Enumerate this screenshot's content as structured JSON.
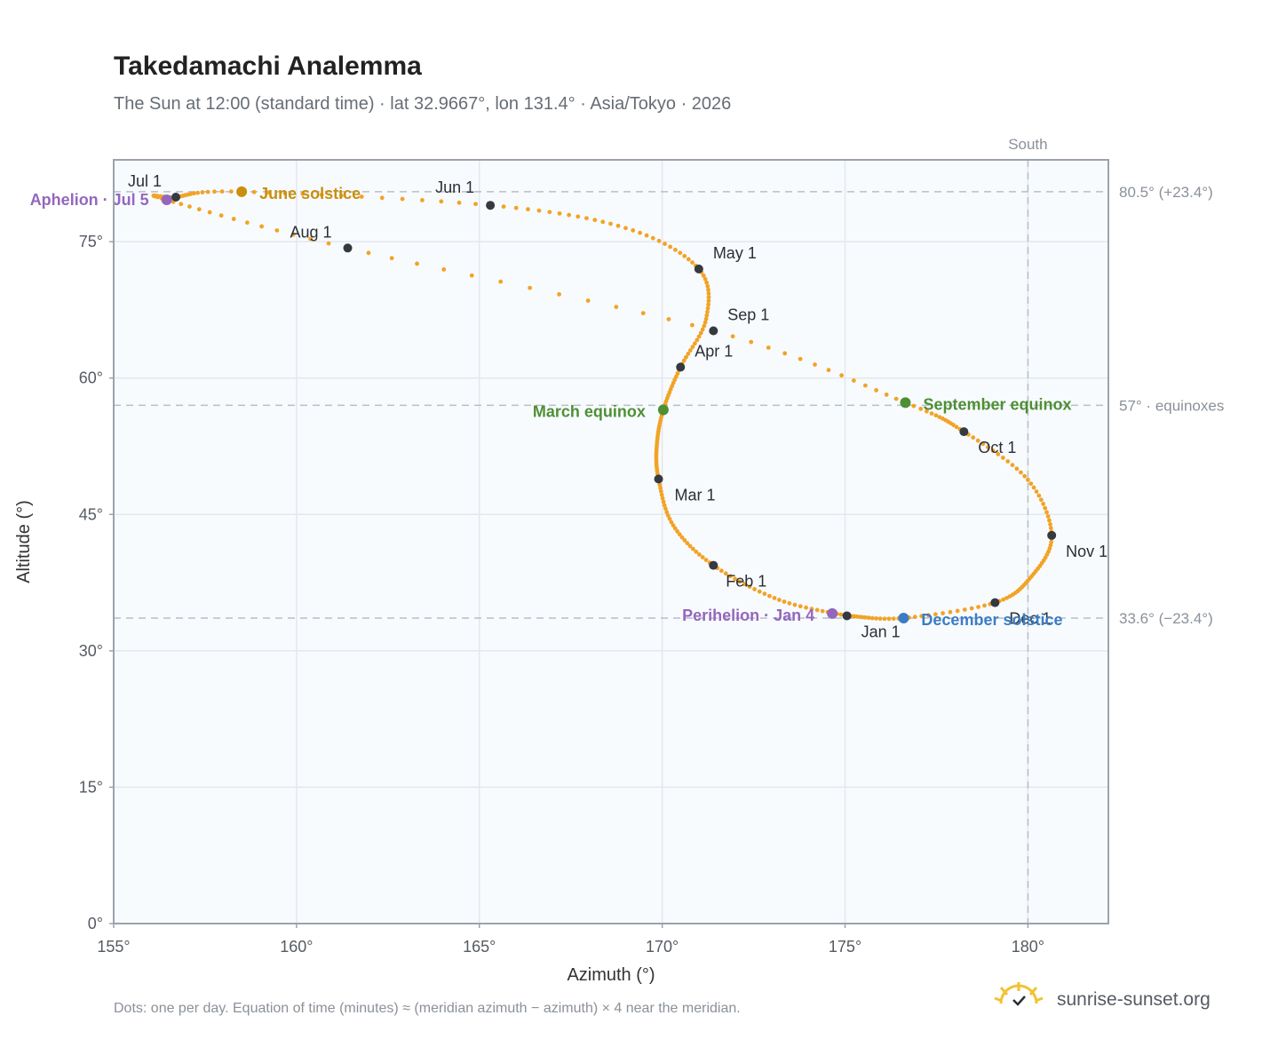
{
  "colors": {
    "curve": "#f2a326",
    "month_dot": "#343a40",
    "aphelion": "#9467bd",
    "perihelion": "#9467bd",
    "june_solstice": "#c8900e",
    "equinox": "#4e8f34",
    "december_solstice": "#3b7dc4",
    "plot_bg": "#f8fbfe",
    "grid": "#e3e8ee",
    "frame": "#9aa3ad",
    "refline": "#b7bec6",
    "brand_sun": "#f2c230"
  },
  "brand": {
    "icon": "sunrise-icon",
    "text": "sunrise-sunset.org"
  },
  "footnote": "Dots: one per day. Equation of time (minutes) ≈ (meridian azimuth − azimuth) × 4 near the meridian.",
  "chart_data": {
    "type": "scatter",
    "title": "Takedamachi Analemma",
    "subtitle": "The Sun at 12:00 (standard time) · lat 32.9667°, lon 131.4° · Asia/Tokyo · 2026",
    "xlabel": "Azimuth (°)",
    "ylabel": "Altitude (°)",
    "xlim": [
      155,
      182.2
    ],
    "ylim": [
      0,
      84
    ],
    "xticks": [
      155,
      160,
      165,
      170,
      175,
      180
    ],
    "xtick_labels": [
      "155°",
      "160°",
      "165°",
      "170°",
      "175°",
      "180°"
    ],
    "yticks": [
      0,
      15,
      30,
      45,
      60,
      75
    ],
    "ytick_labels": [
      "0°",
      "15°",
      "30°",
      "45°",
      "60°",
      "75°"
    ],
    "grid": true,
    "reference_lines": {
      "vertical": [
        {
          "x": 180,
          "label": "South"
        }
      ],
      "horizontal": [
        {
          "y": 80.5,
          "label": "80.5° (+23.4°)"
        },
        {
          "y": 57,
          "label": "57° · equinoxes"
        },
        {
          "y": 33.6,
          "label": "33.6° (−23.4°)"
        }
      ]
    },
    "path_description_points": [
      {
        "date": "Jan 1",
        "az": 175.05,
        "alt": 33.85
      },
      {
        "date": "Jan 15",
        "az": 173.2,
        "alt": 35.6
      },
      {
        "date": "Feb 1",
        "az": 171.4,
        "alt": 39.4
      },
      {
        "date": "Feb 15",
        "az": 170.3,
        "alt": 43.8
      },
      {
        "date": "Mar 1",
        "az": 169.9,
        "alt": 48.9
      },
      {
        "date": "Mar 10",
        "az": 169.85,
        "alt": 52.5
      },
      {
        "date": "Mar 20",
        "az": 170.03,
        "alt": 56.5
      },
      {
        "date": "Apr 1",
        "az": 170.5,
        "alt": 61.2
      },
      {
        "date": "Apr 15",
        "az": 171.2,
        "alt": 66.5
      },
      {
        "date": "May 1",
        "az": 171.0,
        "alt": 72.0
      },
      {
        "date": "May 15",
        "az": 169.0,
        "alt": 76.5
      },
      {
        "date": "Jun 1",
        "az": 165.3,
        "alt": 79.0
      },
      {
        "date": "Jun 21",
        "az": 158.5,
        "alt": 80.5
      },
      {
        "date": "Jul 1",
        "az": 156.7,
        "alt": 79.9
      },
      {
        "date": "Jul 5",
        "az": 156.45,
        "alt": 79.6
      },
      {
        "date": "Aug 1",
        "az": 161.4,
        "alt": 74.3
      },
      {
        "date": "Sep 1",
        "az": 171.4,
        "alt": 65.2
      },
      {
        "date": "Sep 23",
        "az": 176.65,
        "alt": 57.3
      },
      {
        "date": "Oct 1",
        "az": 178.25,
        "alt": 54.1
      },
      {
        "date": "Oct 15",
        "az": 180.0,
        "alt": 48.8
      },
      {
        "date": "Nov 1",
        "az": 180.65,
        "alt": 42.7
      },
      {
        "date": "Nov 15",
        "az": 180.1,
        "alt": 38.2
      },
      {
        "date": "Dec 1",
        "az": 179.1,
        "alt": 35.3
      },
      {
        "date": "Dec 21",
        "az": 176.6,
        "alt": 33.6
      },
      {
        "date": "Dec 31",
        "az": 175.2,
        "alt": 33.8
      }
    ],
    "month_markers": [
      {
        "label": "Jan 1",
        "az": 175.05,
        "alt": 33.85
      },
      {
        "label": "Feb 1",
        "az": 171.4,
        "alt": 39.4
      },
      {
        "label": "Mar 1",
        "az": 169.9,
        "alt": 48.9
      },
      {
        "label": "Apr 1",
        "az": 170.5,
        "alt": 61.2
      },
      {
        "label": "May 1",
        "az": 171.0,
        "alt": 72.0
      },
      {
        "label": "Jun 1",
        "az": 165.3,
        "alt": 79.0
      },
      {
        "label": "Jul 1",
        "az": 156.7,
        "alt": 79.9
      },
      {
        "label": "Aug 1",
        "az": 161.4,
        "alt": 74.3
      },
      {
        "label": "Sep 1",
        "az": 171.4,
        "alt": 65.2
      },
      {
        "label": "Oct 1",
        "az": 178.25,
        "alt": 54.1
      },
      {
        "label": "Nov 1",
        "az": 180.65,
        "alt": 42.7
      },
      {
        "label": "Dec 1",
        "az": 179.1,
        "alt": 35.3
      }
    ],
    "events": [
      {
        "label": "Aphelion · Jul 5",
        "az": 156.45,
        "alt": 79.6,
        "kind": "aphelion"
      },
      {
        "label": "June solstice",
        "az": 158.5,
        "alt": 80.5,
        "kind": "june_solstice"
      },
      {
        "label": "March equinox",
        "az": 170.03,
        "alt": 56.5,
        "kind": "equinox"
      },
      {
        "label": "September equinox",
        "az": 176.65,
        "alt": 57.3,
        "kind": "equinox"
      },
      {
        "label": "Perihelion · Jan 4",
        "az": 174.65,
        "alt": 34.1,
        "kind": "perihelion"
      },
      {
        "label": "December solstice",
        "az": 176.6,
        "alt": 33.6,
        "kind": "december_solstice"
      }
    ]
  }
}
